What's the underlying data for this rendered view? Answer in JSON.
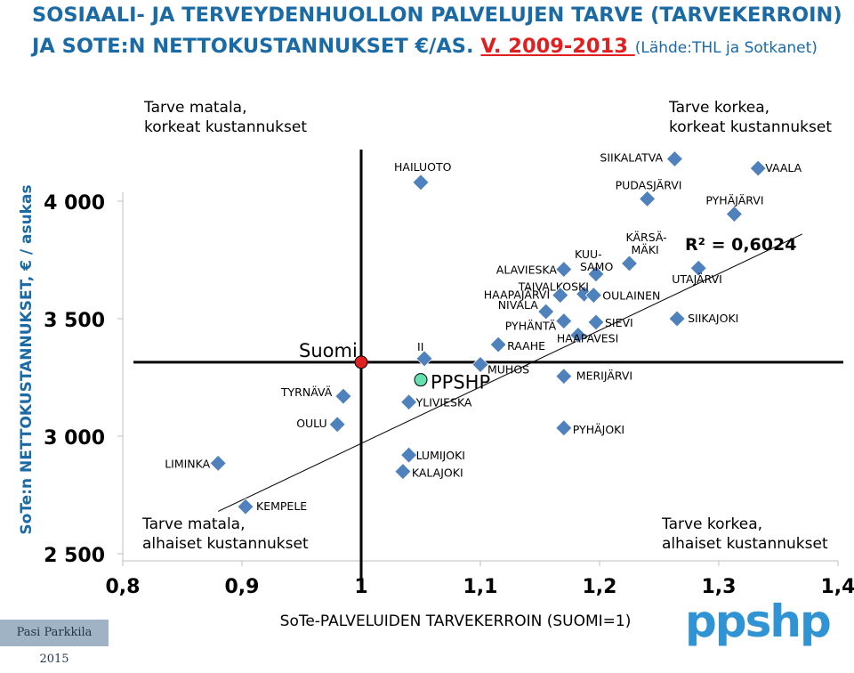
{
  "slide": {
    "title_line1": "SOSIAALI- JA TERVEYDENHUOLLON PALVELUJEN TARVE (TARVEKERROIN)",
    "title_line2_a": "JA SOTE:N NETTOKUSTANNUKSET €/AS. ",
    "title_link": "V. 2009-2013 ",
    "title_source": "(Lähde:THL ja Sotkanet)",
    "credit": "Pasi Parkkila 2015",
    "logo": "ppshp"
  },
  "chart_data": {
    "type": "scatter",
    "title": "",
    "xlabel": "SoTe-PALVELUIDEN TARVEKERROIN (SUOMI=1)",
    "ylabel": "SoTe:n NETTOKUSTANNUKSET, € / asukas",
    "xlim": [
      0.8,
      1.4
    ],
    "ylim": [
      2500,
      4000
    ],
    "x_ticks": [
      "0,8",
      "0,9",
      "1",
      "1,1",
      "1,2",
      "1,3",
      "1,4"
    ],
    "y_ticks": [
      "2 500",
      "3 000",
      "3 500",
      "4 000"
    ],
    "grid": false,
    "series": [
      {
        "marker": "diamond",
        "color": "#4f81bd",
        "points": [
          {
            "label": "SIIKALATVA",
            "x": 1.263,
            "y": 4180
          },
          {
            "label": "HAILUOTO",
            "x": 1.05,
            "y": 4080
          },
          {
            "label": "VAALA",
            "x": 1.333,
            "y": 4140
          },
          {
            "label": "PUDASJÄRVI",
            "x": 1.24,
            "y": 4010
          },
          {
            "label": "PYHÄJÄRVI",
            "x": 1.313,
            "y": 3945
          },
          {
            "label": "KÄRSÄMÄKI",
            "x": 1.225,
            "y": 3735
          },
          {
            "label": "KUUSAMO",
            "x": 1.197,
            "y": 3690
          },
          {
            "label": "ALAVIESKA",
            "x": 1.17,
            "y": 3710
          },
          {
            "label": "UTAJÄRVI",
            "x": 1.283,
            "y": 3715
          },
          {
            "label": "TAIVALKOSKI",
            "x": 1.187,
            "y": 3605
          },
          {
            "label": "HAAPAJÄRVI",
            "x": 1.167,
            "y": 3600
          },
          {
            "label": "OULAINEN",
            "x": 1.195,
            "y": 3600
          },
          {
            "label": "NIVALA",
            "x": 1.155,
            "y": 3530
          },
          {
            "label": "PYHÄNTÄ",
            "x": 1.17,
            "y": 3490
          },
          {
            "label": "SIEVI",
            "x": 1.197,
            "y": 3485
          },
          {
            "label": "SIIKAJOKI",
            "x": 1.265,
            "y": 3500
          },
          {
            "label": "HAAPAVESI",
            "x": 1.182,
            "y": 3430
          },
          {
            "label": "RAAHE",
            "x": 1.115,
            "y": 3390
          },
          {
            "label": "II",
            "x": 1.053,
            "y": 3330
          },
          {
            "label": "MUHOS",
            "x": 1.1,
            "y": 3305
          },
          {
            "label": "MERIJÄRVI",
            "x": 1.17,
            "y": 3255
          },
          {
            "label": "TYRNÄVÄ",
            "x": 0.985,
            "y": 3170
          },
          {
            "label": "YLIVIESKA",
            "x": 1.04,
            "y": 3145
          },
          {
            "label": "OULU",
            "x": 0.98,
            "y": 3050
          },
          {
            "label": "PYHÄJOKI",
            "x": 1.17,
            "y": 3035
          },
          {
            "label": "LUMIJOKI",
            "x": 1.04,
            "y": 2920
          },
          {
            "label": "LIMINKA",
            "x": 0.88,
            "y": 2885
          },
          {
            "label": "KALAJOKI",
            "x": 1.035,
            "y": 2850
          },
          {
            "label": "KEMPELE",
            "x": 0.903,
            "y": 2700
          }
        ]
      }
    ],
    "reference": {
      "label": "Suomi",
      "x": 1.0,
      "y": 3315,
      "color": "#e02020"
    },
    "highlight": {
      "label": "PPSHP",
      "x": 1.05,
      "y": 3240,
      "color": "#66e0b0"
    },
    "trendline": {
      "x": [
        0.88,
        1.37
      ],
      "y": [
        2680,
        3860
      ],
      "r2_label": "R² = 0,6024"
    },
    "quadrant_labels": {
      "top_left": "Tarve matala,\nkorkeat kustannukset",
      "top_right": "Tarve korkea,\nkorkeat kustannukset",
      "bottom_left": "Tarve matala,\nalhaiset kustannukset",
      "bottom_right": "Tarve korkea,\nalhaiset kustannukset"
    }
  }
}
